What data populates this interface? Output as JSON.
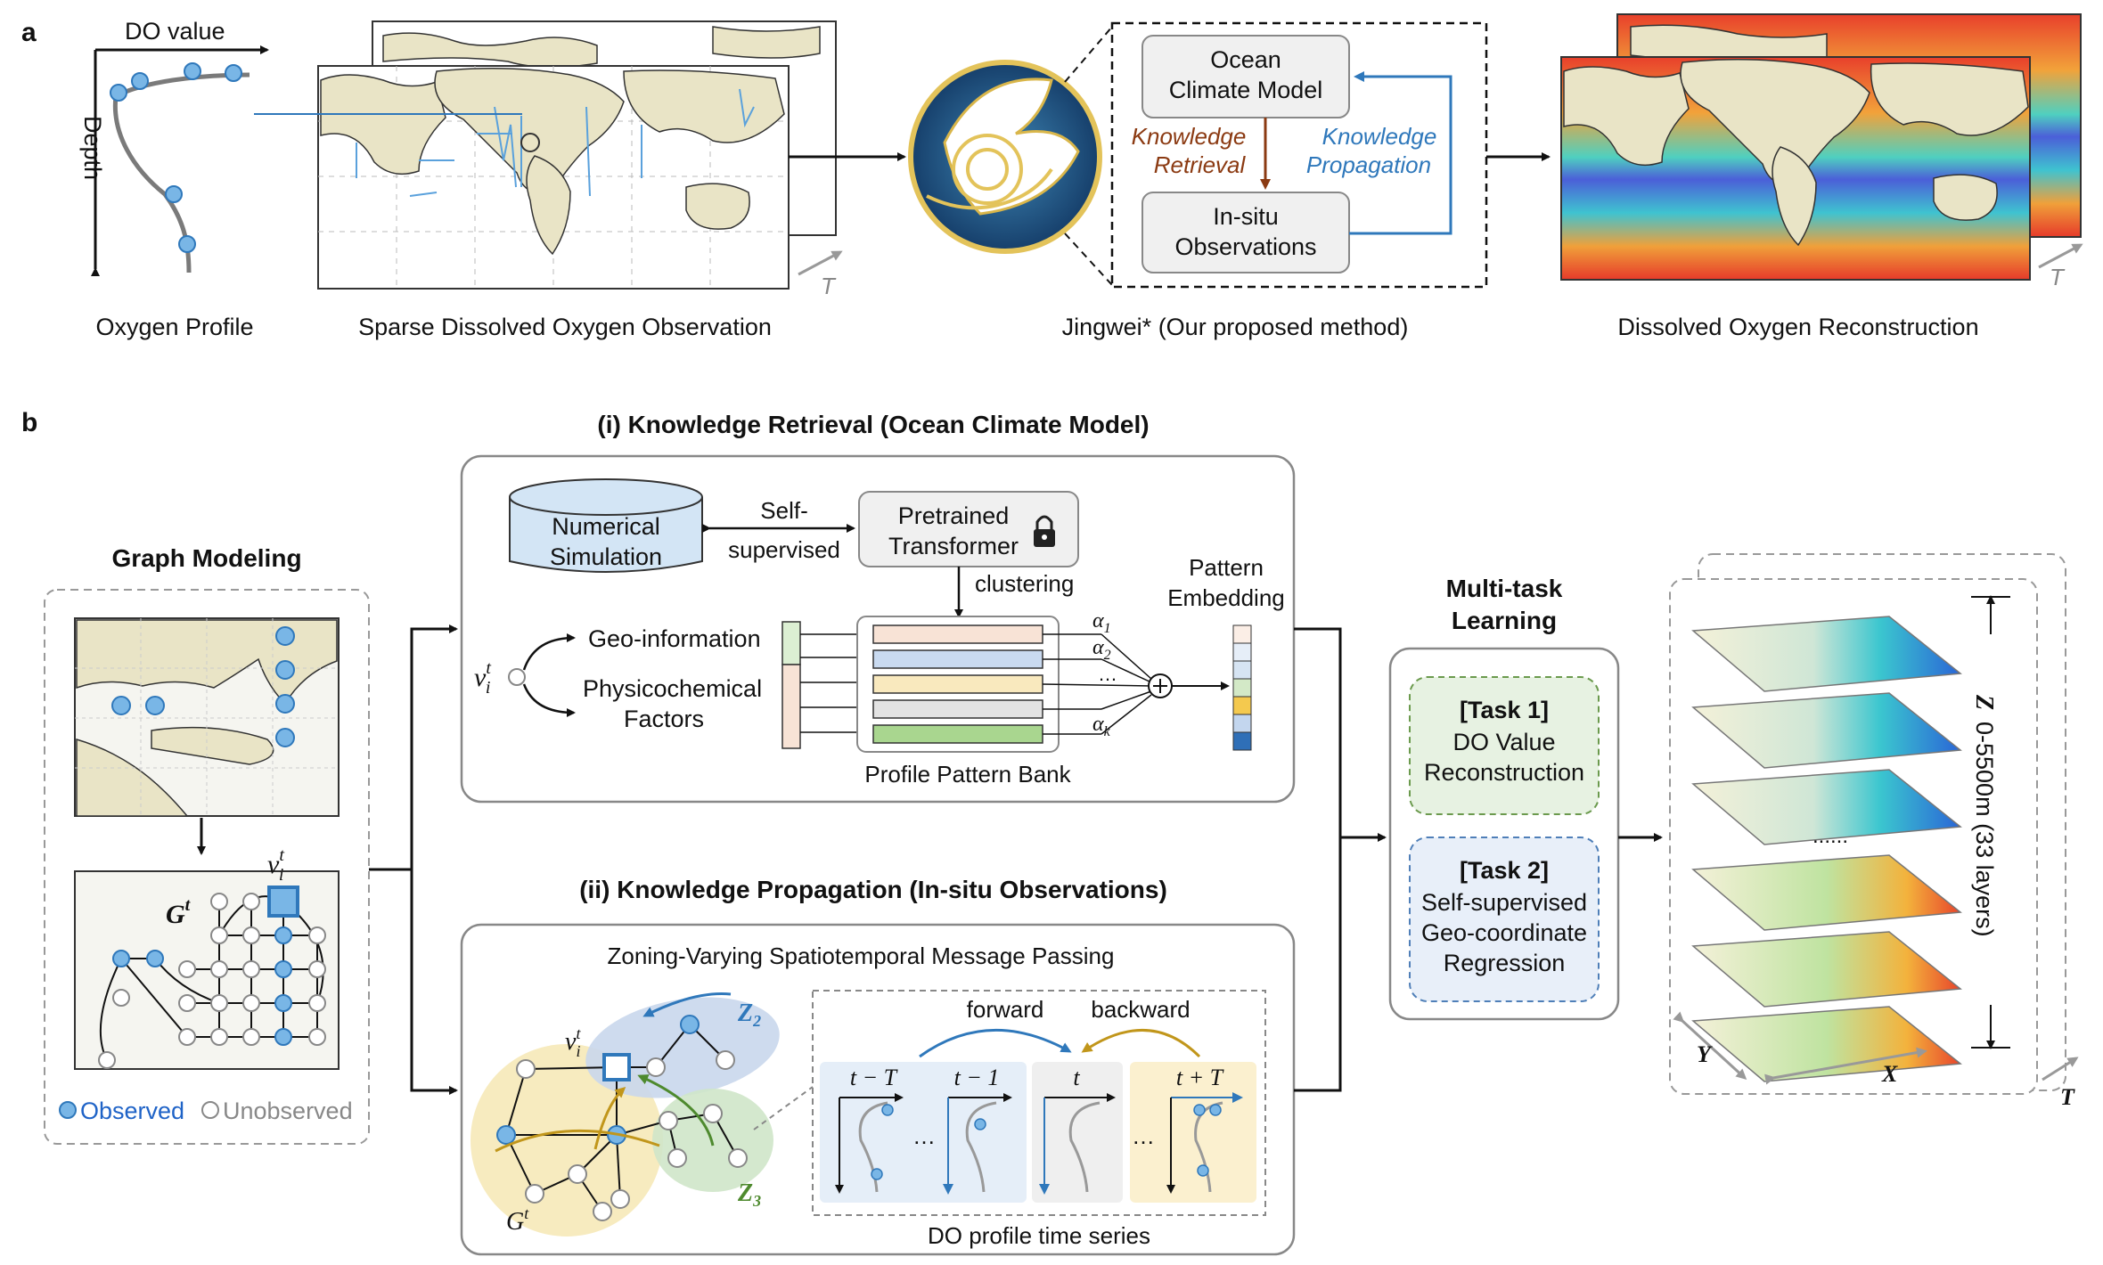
{
  "panel_a": {
    "letter": "a",
    "profile": {
      "x_axis": "DO value",
      "y_axis": "Depth",
      "caption": "Oxygen Profile"
    },
    "sparse_caption": "Sparse Dissolved Oxygen Observation",
    "time_symbol": "T",
    "method": {
      "caption": "Jingwei* (Our proposed method)",
      "ocean_model": [
        "Ocean",
        "Climate Model"
      ],
      "insitu": [
        "In-situ",
        "Observations"
      ],
      "retrieval": [
        "Knowledge",
        "Retrieval"
      ],
      "propagation": [
        "Knowledge",
        "Propagation"
      ]
    },
    "recon_caption": "Dissolved Oxygen Reconstruction"
  },
  "panel_b": {
    "letter": "b",
    "graph_modeling": {
      "title": "Graph Modeling",
      "graph_symbol": "G",
      "node_symbol": "v",
      "legend_observed": "Observed",
      "legend_unobserved": "Unobserved"
    },
    "retrieval": {
      "title": "(i) Knowledge Retrieval (Ocean Climate Model)",
      "numerical": [
        "Numerical",
        "Simulation"
      ],
      "self_supervised": [
        "Self-",
        "supervised"
      ],
      "pretrained": [
        "Pretrained",
        "Transformer"
      ],
      "clustering": "clustering",
      "geo_info": "Geo-information",
      "physico": [
        "Physicochemical",
        "Factors"
      ],
      "pattern_embedding": [
        "Pattern",
        "Embedding"
      ],
      "bank_label": "Profile Pattern Bank",
      "alpha_labels": [
        "α",
        "α",
        "…",
        "α"
      ],
      "alpha_subs": [
        "1",
        "2",
        "",
        "k"
      ]
    },
    "propagation": {
      "title": "(ii) Knowledge Propagation (In-situ Observations)",
      "subtitle": "Zoning-Varying Spatiotemporal Message Passing",
      "zone2": "Z",
      "zone3": "Z",
      "forward": "forward",
      "backward": "backward",
      "time_labels": [
        "t − T",
        "t − 1",
        "t",
        "t + T"
      ],
      "ellipsis": "…",
      "series_label": "DO profile time series"
    },
    "multitask": {
      "title": [
        "Multi-task",
        "Learning"
      ],
      "task1": [
        "[Task 1]",
        "DO Value",
        "Reconstruction"
      ],
      "task2": [
        "[Task 2]",
        "Self-supervised",
        "Geo-coordinate",
        "Regression"
      ]
    },
    "layers": {
      "z_label": "Z",
      "z_range": "0-5500m (33 layers)",
      "dots": "......",
      "x_label": "X",
      "y_label": "Y",
      "t_label": "T"
    }
  },
  "colors": {
    "land": "#e9e4c6",
    "obs_blue": "#5aa1dc",
    "retrieval_brown": "#8b3a12",
    "propagation_blue": "#2f78bb",
    "zone_yellow": "#f6e7b4",
    "zone_blue": "#c9d7ec",
    "zone_green": "#cfe6c9"
  }
}
